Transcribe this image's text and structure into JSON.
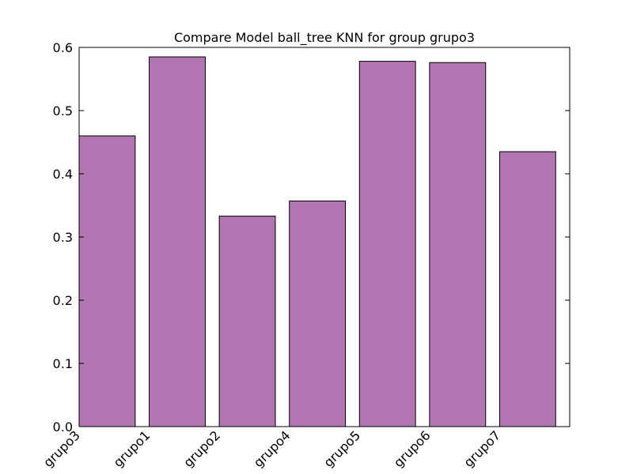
{
  "chart_data": {
    "type": "bar",
    "title": "Compare Model ball_tree KNN for group grupo3",
    "xlabel": "",
    "ylabel": "",
    "categories": [
      "grupo3",
      "grupo1",
      "grupo2",
      "grupo4",
      "grupo5",
      "grupo6",
      "grupo7"
    ],
    "values": [
      0.46,
      0.585,
      0.333,
      0.357,
      0.578,
      0.576,
      0.435
    ],
    "ylim": [
      0,
      0.6
    ],
    "yticks": [
      "0.0",
      "0.1",
      "0.2",
      "0.3",
      "0.4",
      "0.5",
      "0.6"
    ],
    "grid": false,
    "legend": "none",
    "bar_color": "#b276b2",
    "edge_color": "#000000"
  }
}
